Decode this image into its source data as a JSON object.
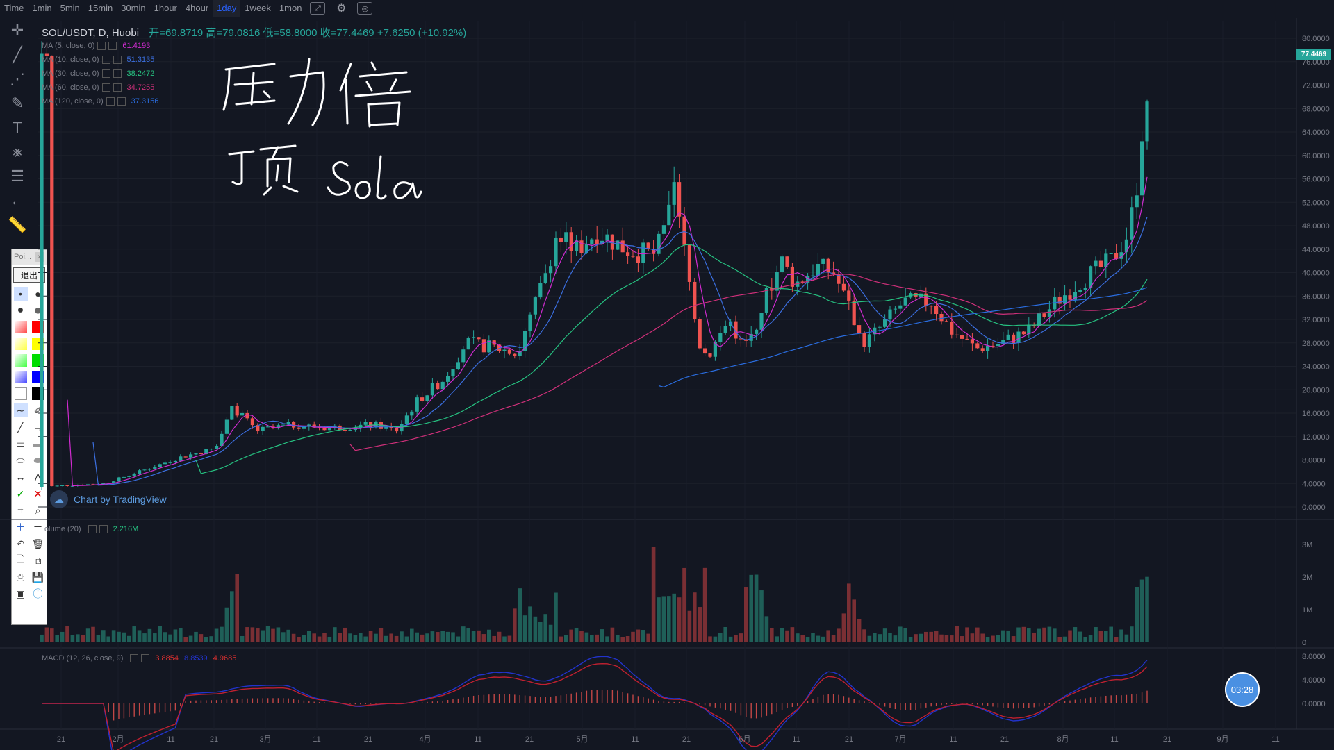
{
  "toolbar": {
    "timeframes": [
      "Time",
      "1min",
      "5min",
      "15min",
      "30min",
      "1hour",
      "4hour",
      "1day",
      "1week",
      "1mon"
    ],
    "active": "1day"
  },
  "legend": {
    "symbol": "SOL/USDT, D, Huobi",
    "ohlc": "开=69.8719  高=79.0816  低=58.8000  收=77.4469  +7.6250 (+10.92%)"
  },
  "ma": [
    {
      "label": "MA (5, close, 0)",
      "value": "61.4193",
      "color": "#d02bd0"
    },
    {
      "label": "MA (10, close, 0)",
      "value": "51.3135",
      "color": "#3b6fe0"
    },
    {
      "label": "MA (30, close, 0)",
      "value": "38.2472",
      "color": "#26c281"
    },
    {
      "label": "MA (60, close, 0)",
      "value": "34.7255",
      "color": "#d0307a"
    },
    {
      "label": "MA (120, close, 0)",
      "value": "37.3156",
      "color": "#2a6de0"
    }
  ],
  "price_axis": [
    "80.0000",
    "76.0000",
    "72.0000",
    "68.0000",
    "64.0000",
    "60.0000",
    "56.0000",
    "52.0000",
    "48.0000",
    "44.0000",
    "40.0000",
    "36.0000",
    "32.0000",
    "28.0000",
    "24.0000",
    "20.0000",
    "16.0000",
    "12.0000",
    "8.0000",
    "4.0000",
    "0.0000"
  ],
  "last_price": "77.4469",
  "volume": {
    "label": "olume (20)",
    "value": "2.216M",
    "axis": [
      "3M",
      "2M",
      "1M",
      "0"
    ]
  },
  "macd": {
    "label": "MACD (12, 26, close, 9)",
    "v1": "3.8854",
    "v2": "8.8539",
    "v3": "4.9685",
    "axis": [
      "8.0000",
      "4.0000",
      "0.0000"
    ]
  },
  "time_axis": [
    "21",
    "2月",
    "11",
    "21",
    "3月",
    "11",
    "21",
    "4月",
    "11",
    "21",
    "5月",
    "11",
    "21",
    "6月",
    "11",
    "21",
    "7月",
    "11",
    "21",
    "8月",
    "11",
    "21",
    "9月",
    "11"
  ],
  "brand": "Chart by TradingView",
  "annotations": {
    "line1": "压力倍",
    "line2": "顶  Sola"
  },
  "palette": {
    "title": "Poi...",
    "exit": "退出"
  },
  "timer": "03:28",
  "colors": {
    "up": "#26a69a",
    "down": "#ef5350",
    "bg": "#131722"
  }
}
